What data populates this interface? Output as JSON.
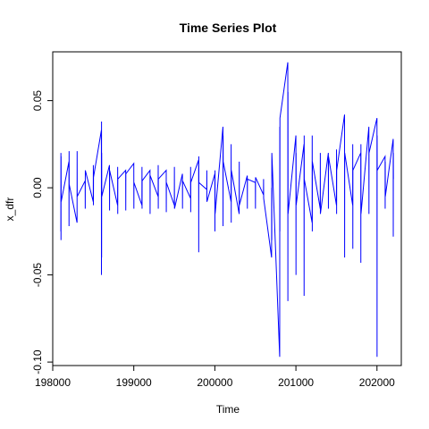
{
  "chart_data": {
    "type": "line",
    "title": "Time Series Plot",
    "xlabel": "Time",
    "ylabel": "x_dfr",
    "xlim": [
      198000,
      202300
    ],
    "ylim": [
      -0.102,
      0.078
    ],
    "x_ticks": [
      198000,
      199000,
      200000,
      201000,
      202000
    ],
    "x_tick_labels": [
      "198000",
      "199000",
      "200000",
      "201000",
      "202000"
    ],
    "y_ticks": [
      -0.1,
      -0.05,
      0.0,
      0.05
    ],
    "y_tick_labels": [
      "-0.10",
      "-0.05",
      "0.00",
      "0.05"
    ],
    "grid": false,
    "legend": "none",
    "series": [
      {
        "color": "#0000ff",
        "points": [
          [
            198100,
            -0.025
          ],
          [
            198101,
            0.02
          ],
          [
            198102,
            -0.03
          ],
          [
            198103,
            0.018
          ],
          [
            198104,
            -0.008
          ],
          [
            198200,
            0.015
          ],
          [
            198201,
            -0.022
          ],
          [
            198202,
            0.021
          ],
          [
            198203,
            0.002
          ],
          [
            198300,
            -0.02
          ],
          [
            198301,
            0.021
          ],
          [
            198302,
            -0.005
          ],
          [
            198400,
            0.004
          ],
          [
            198401,
            -0.012
          ],
          [
            198402,
            0.01
          ],
          [
            198500,
            -0.008
          ],
          [
            198501,
            0.013
          ],
          [
            198502,
            -0.01
          ],
          [
            198503,
            0.006
          ],
          [
            198600,
            0.033
          ],
          [
            198601,
            -0.05
          ],
          [
            198602,
            0.038
          ],
          [
            198603,
            -0.04
          ],
          [
            198604,
            0.02
          ],
          [
            198605,
            -0.005
          ],
          [
            198700,
            0.013
          ],
          [
            198701,
            -0.013
          ],
          [
            198702,
            0.01
          ],
          [
            198800,
            -0.01
          ],
          [
            198801,
            0.012
          ],
          [
            198802,
            -0.015
          ],
          [
            198803,
            0.005
          ],
          [
            198900,
            0.01
          ],
          [
            198901,
            -0.013
          ],
          [
            198902,
            0.008
          ],
          [
            199000,
            0.014
          ],
          [
            199001,
            -0.012
          ],
          [
            199002,
            0.003
          ],
          [
            199100,
            -0.01
          ],
          [
            199101,
            0.012
          ],
          [
            199102,
            -0.012
          ],
          [
            199103,
            0.004
          ],
          [
            199200,
            0.01
          ],
          [
            199201,
            -0.015
          ],
          [
            199202,
            0.007
          ],
          [
            199300,
            -0.005
          ],
          [
            199301,
            0.013
          ],
          [
            199302,
            -0.012
          ],
          [
            199303,
            0.005
          ],
          [
            199400,
            0.01
          ],
          [
            199401,
            -0.014
          ],
          [
            199402,
            0.003
          ],
          [
            199500,
            -0.01
          ],
          [
            199501,
            0.012
          ],
          [
            199502,
            -0.012
          ],
          [
            199600,
            0.008
          ],
          [
            199601,
            -0.012
          ],
          [
            199602,
            0.004
          ],
          [
            199700,
            -0.006
          ],
          [
            199701,
            0.012
          ],
          [
            199702,
            -0.014
          ],
          [
            199703,
            0.003
          ],
          [
            199800,
            0.016
          ],
          [
            199801,
            -0.037
          ],
          [
            199802,
            0.018
          ],
          [
            199803,
            0.003
          ],
          [
            199900,
            -0.001
          ],
          [
            199901,
            0.01
          ],
          [
            199902,
            -0.008
          ],
          [
            200000,
            0.008
          ],
          [
            200001,
            -0.025
          ],
          [
            200002,
            0.01
          ],
          [
            200003,
            -0.015
          ],
          [
            200100,
            0.035
          ],
          [
            200101,
            -0.022
          ],
          [
            200102,
            0.03
          ],
          [
            200103,
            0.015
          ],
          [
            200200,
            -0.008
          ],
          [
            200201,
            0.025
          ],
          [
            200202,
            -0.02
          ],
          [
            200203,
            0.01
          ],
          [
            200300,
            -0.015
          ],
          [
            200301,
            0.015
          ],
          [
            200302,
            -0.01
          ],
          [
            200400,
            0.007
          ],
          [
            200401,
            -0.012
          ],
          [
            200402,
            0.005
          ],
          [
            200500,
            0.003
          ],
          [
            200501,
            -0.012
          ],
          [
            200502,
            0.006
          ],
          [
            200600,
            -0.004
          ],
          [
            200601,
            0.005
          ],
          [
            200602,
            -0.006
          ],
          [
            200700,
            -0.04
          ],
          [
            200701,
            0.0
          ],
          [
            200702,
            -0.03
          ],
          [
            200703,
            0.02
          ],
          [
            200800,
            -0.097
          ],
          [
            200801,
            0.035
          ],
          [
            200802,
            -0.025
          ],
          [
            200803,
            0.04
          ],
          [
            200900,
            0.072
          ],
          [
            200901,
            -0.065
          ],
          [
            200902,
            0.055
          ],
          [
            200903,
            -0.015
          ],
          [
            201000,
            0.03
          ],
          [
            201001,
            -0.05
          ],
          [
            201002,
            0.02
          ],
          [
            201003,
            -0.01
          ],
          [
            201100,
            0.025
          ],
          [
            201101,
            -0.062
          ],
          [
            201102,
            0.03
          ],
          [
            201103,
            0.005
          ],
          [
            201200,
            -0.02
          ],
          [
            201201,
            0.03
          ],
          [
            201202,
            -0.025
          ],
          [
            201203,
            0.015
          ],
          [
            201300,
            -0.012
          ],
          [
            201301,
            0.02
          ],
          [
            201302,
            -0.015
          ],
          [
            201400,
            0.02
          ],
          [
            201401,
            -0.012
          ],
          [
            201402,
            0.018
          ],
          [
            201500,
            -0.01
          ],
          [
            201501,
            0.022
          ],
          [
            201502,
            -0.015
          ],
          [
            201503,
            0.01
          ],
          [
            201600,
            0.042
          ],
          [
            201601,
            -0.04
          ],
          [
            201602,
            0.02
          ],
          [
            201700,
            -0.01
          ],
          [
            201701,
            0.025
          ],
          [
            201702,
            -0.035
          ],
          [
            201703,
            0.01
          ],
          [
            201800,
            0.02
          ],
          [
            201801,
            -0.043
          ],
          [
            201802,
            0.025
          ],
          [
            201803,
            -0.015
          ],
          [
            201900,
            0.035
          ],
          [
            201901,
            -0.015
          ],
          [
            201902,
            0.02
          ],
          [
            202000,
            0.04
          ],
          [
            202001,
            -0.097
          ],
          [
            202002,
            0.03
          ],
          [
            202003,
            0.01
          ],
          [
            202100,
            0.018
          ],
          [
            202101,
            -0.012
          ],
          [
            202102,
            0.015
          ],
          [
            202103,
            -0.005
          ],
          [
            202200,
            0.028
          ],
          [
            202201,
            -0.028
          ],
          [
            202202,
            0.02
          ],
          [
            202203,
            0.005
          ]
        ]
      }
    ]
  }
}
